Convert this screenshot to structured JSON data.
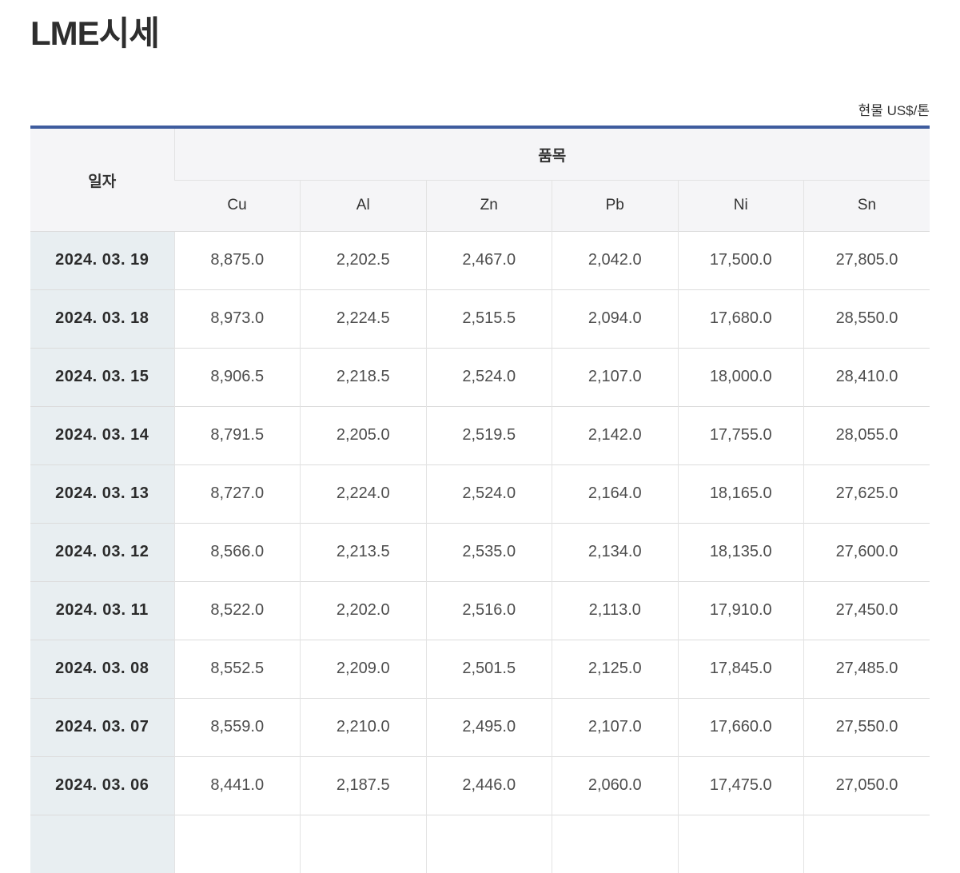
{
  "page": {
    "title": "LME시세",
    "unit_label": "현물 US$/톤"
  },
  "table": {
    "date_header": "일자",
    "group_header": "품목",
    "columns": [
      "Cu",
      "Al",
      "Zn",
      "Pb",
      "Ni",
      "Sn"
    ],
    "rows": [
      {
        "date": "2024. 03. 19",
        "values": [
          "8,875.0",
          "2,202.5",
          "2,467.0",
          "2,042.0",
          "17,500.0",
          "27,805.0"
        ]
      },
      {
        "date": "2024. 03. 18",
        "values": [
          "8,973.0",
          "2,224.5",
          "2,515.5",
          "2,094.0",
          "17,680.0",
          "28,550.0"
        ]
      },
      {
        "date": "2024. 03. 15",
        "values": [
          "8,906.5",
          "2,218.5",
          "2,524.0",
          "2,107.0",
          "18,000.0",
          "28,410.0"
        ]
      },
      {
        "date": "2024. 03. 14",
        "values": [
          "8,791.5",
          "2,205.0",
          "2,519.5",
          "2,142.0",
          "17,755.0",
          "28,055.0"
        ]
      },
      {
        "date": "2024. 03. 13",
        "values": [
          "8,727.0",
          "2,224.0",
          "2,524.0",
          "2,164.0",
          "18,165.0",
          "27,625.0"
        ]
      },
      {
        "date": "2024. 03. 12",
        "values": [
          "8,566.0",
          "2,213.5",
          "2,535.0",
          "2,134.0",
          "18,135.0",
          "27,600.0"
        ]
      },
      {
        "date": "2024. 03. 11",
        "values": [
          "8,522.0",
          "2,202.0",
          "2,516.0",
          "2,113.0",
          "17,910.0",
          "27,450.0"
        ]
      },
      {
        "date": "2024. 03. 08",
        "values": [
          "8,552.5",
          "2,209.0",
          "2,501.5",
          "2,125.0",
          "17,845.0",
          "27,485.0"
        ]
      },
      {
        "date": "2024. 03. 07",
        "values": [
          "8,559.0",
          "2,210.0",
          "2,495.0",
          "2,107.0",
          "17,660.0",
          "27,550.0"
        ]
      },
      {
        "date": "2024. 03. 06",
        "values": [
          "8,441.0",
          "2,187.5",
          "2,446.0",
          "2,060.0",
          "17,475.0",
          "27,050.0"
        ]
      }
    ],
    "partial_next_row_visible": true
  },
  "colors": {
    "accent_top_border": "#3e5c9e",
    "header_bg": "#f5f5f7",
    "date_cell_bg": "#e8eef1",
    "row_border": "#dcdcdc",
    "col_border": "#e3e3e3"
  }
}
